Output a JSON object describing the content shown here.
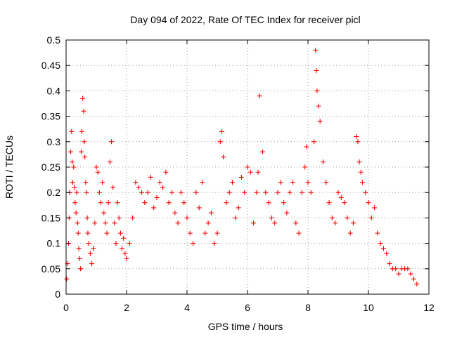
{
  "chart_data": {
    "type": "scatter",
    "title": "Day 094 of 2022, Rate Of TEC Index for receiver picl",
    "xlabel": "GPS time / hours",
    "ylabel": "ROTI / TECUs",
    "xlim": [
      0,
      12
    ],
    "ylim": [
      0,
      0.5
    ],
    "xticks": [
      0,
      2,
      4,
      6,
      8,
      10,
      12
    ],
    "yticks": [
      0,
      0.05,
      0.1,
      0.15,
      0.2,
      0.25,
      0.3,
      0.35,
      0.4,
      0.45,
      0.5
    ],
    "grid": true,
    "legend": "none",
    "marker": "plus",
    "color": "#ff0000",
    "series": [
      {
        "x": [
          0.02,
          0.05,
          0.08,
          0.1,
          0.12,
          0.15,
          0.18,
          0.2,
          0.22,
          0.25,
          0.28,
          0.3,
          0.33,
          0.35,
          0.38,
          0.4,
          0.42,
          0.45,
          0.48,
          0.5,
          0.52,
          0.55,
          0.58,
          0.6,
          0.62,
          0.65,
          0.68,
          0.7,
          0.72,
          0.75,
          0.8,
          0.85,
          0.9,
          0.95,
          1.0,
          1.05,
          1.1,
          1.15,
          1.2,
          1.25,
          1.3,
          1.35,
          1.4,
          1.45,
          1.5,
          1.55,
          1.6,
          1.65,
          1.7,
          1.75,
          1.8,
          1.85,
          1.9,
          1.95,
          2.0,
          2.1,
          2.2,
          2.3,
          2.4,
          2.5,
          2.6,
          2.7,
          2.8,
          2.9,
          3.0,
          3.1,
          3.2,
          3.3,
          3.4,
          3.5,
          3.6,
          3.7,
          3.8,
          3.9,
          4.0,
          4.1,
          4.2,
          4.3,
          4.4,
          4.5,
          4.6,
          4.7,
          4.8,
          4.9,
          5.0,
          5.1,
          5.15,
          5.2,
          5.3,
          5.4,
          5.5,
          5.6,
          5.7,
          5.8,
          5.9,
          6.0,
          6.1,
          6.2,
          6.3,
          6.35,
          6.4,
          6.5,
          6.6,
          6.7,
          6.8,
          6.9,
          7.0,
          7.1,
          7.2,
          7.3,
          7.4,
          7.5,
          7.6,
          7.7,
          7.8,
          7.9,
          7.95,
          8.0,
          8.1,
          8.2,
          8.25,
          8.28,
          8.3,
          8.35,
          8.4,
          8.5,
          8.6,
          8.7,
          8.8,
          8.9,
          9.0,
          9.1,
          9.2,
          9.3,
          9.4,
          9.5,
          9.6,
          9.65,
          9.7,
          9.75,
          9.8,
          9.9,
          10.0,
          10.1,
          10.2,
          10.3,
          10.4,
          10.5,
          10.6,
          10.7,
          10.8,
          10.9,
          11.0,
          11.1,
          11.2,
          11.3,
          11.4,
          11.5,
          11.6
        ],
        "y": [
          0.03,
          0.06,
          0.1,
          0.15,
          0.2,
          0.28,
          0.32,
          0.26,
          0.22,
          0.25,
          0.21,
          0.18,
          0.16,
          0.2,
          0.14,
          0.12,
          0.09,
          0.07,
          0.05,
          0.28,
          0.32,
          0.385,
          0.36,
          0.3,
          0.27,
          0.22,
          0.2,
          0.15,
          0.12,
          0.1,
          0.08,
          0.06,
          0.09,
          0.14,
          0.25,
          0.24,
          0.2,
          0.18,
          0.22,
          0.16,
          0.14,
          0.12,
          0.18,
          0.26,
          0.3,
          0.21,
          0.14,
          0.1,
          0.18,
          0.15,
          0.12,
          0.09,
          0.11,
          0.08,
          0.07,
          0.1,
          0.15,
          0.22,
          0.21,
          0.2,
          0.18,
          0.2,
          0.23,
          0.17,
          0.19,
          0.22,
          0.21,
          0.24,
          0.18,
          0.2,
          0.16,
          0.14,
          0.2,
          0.18,
          0.15,
          0.12,
          0.1,
          0.2,
          0.17,
          0.22,
          0.12,
          0.14,
          0.16,
          0.1,
          0.12,
          0.3,
          0.32,
          0.27,
          0.18,
          0.2,
          0.22,
          0.15,
          0.17,
          0.23,
          0.2,
          0.25,
          0.24,
          0.14,
          0.2,
          0.24,
          0.39,
          0.28,
          0.2,
          0.18,
          0.15,
          0.14,
          0.2,
          0.22,
          0.18,
          0.16,
          0.2,
          0.22,
          0.14,
          0.12,
          0.2,
          0.25,
          0.29,
          0.22,
          0.2,
          0.3,
          0.48,
          0.44,
          0.4,
          0.37,
          0.34,
          0.26,
          0.22,
          0.18,
          0.15,
          0.14,
          0.2,
          0.19,
          0.18,
          0.15,
          0.12,
          0.14,
          0.31,
          0.3,
          0.26,
          0.24,
          0.22,
          0.2,
          0.18,
          0.15,
          0.17,
          0.12,
          0.1,
          0.09,
          0.08,
          0.06,
          0.05,
          0.05,
          0.04,
          0.05,
          0.05,
          0.05,
          0.04,
          0.03,
          0.02
        ]
      }
    ]
  }
}
